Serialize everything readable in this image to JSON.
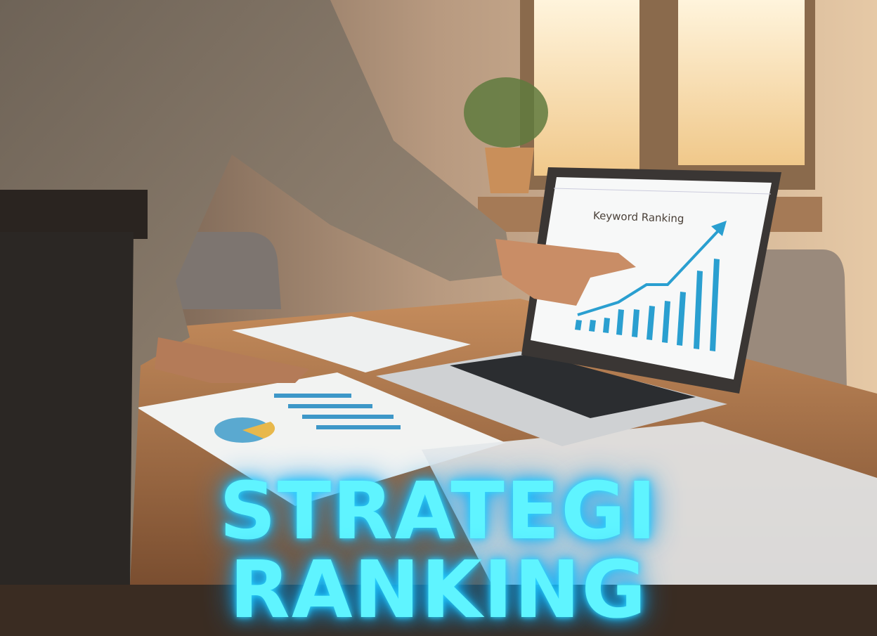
{
  "headline": "STRATEGI RANKING",
  "laptop_screen": {
    "title": "Keyword Ranking"
  },
  "colors": {
    "headline": "#5ff4ff",
    "chart_bars": "#2a9fd0",
    "chart_line": "#2a9fd0",
    "warm_light": "#f3d7a8"
  }
}
